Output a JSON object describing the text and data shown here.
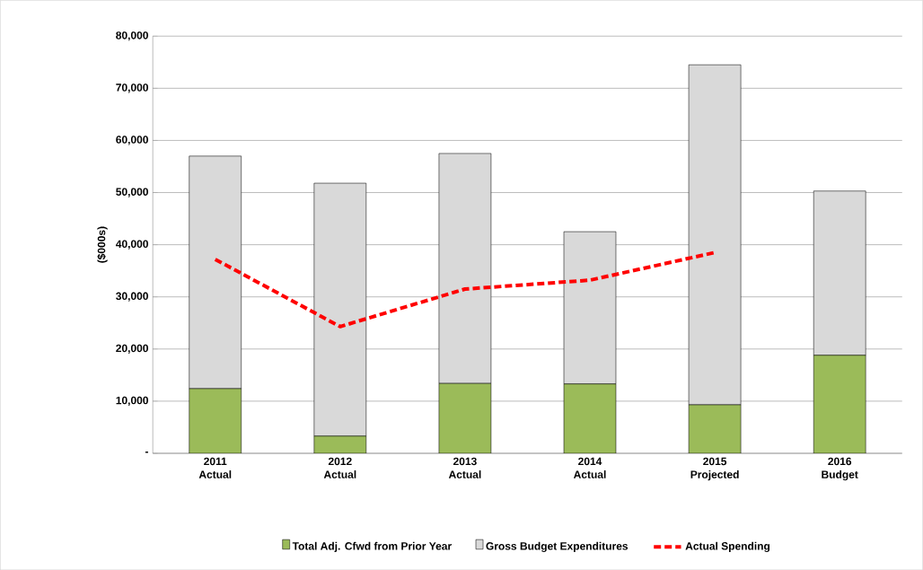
{
  "chart_data": {
    "type": "bar",
    "stacked": true,
    "ylabel": "($000s)",
    "categories": [
      "2011 Actual",
      "2012 Actual",
      "2013 Actual",
      "2014 Actual",
      "2015 Projected",
      "2016 Budget"
    ],
    "series": [
      {
        "name": "Total Adj. Cfwd from Prior Year",
        "color": "#9bbb59",
        "values": [
          12400,
          3300,
          13400,
          13300,
          9300,
          18800
        ]
      },
      {
        "name": "Gross Budget Expenditures",
        "color": "#d9d9d9",
        "values": [
          44600,
          48500,
          44100,
          29200,
          65200,
          31500
        ]
      },
      {
        "name": "Actual Spending",
        "type": "line",
        "line_style": "dashed",
        "color": "#ff0000",
        "values": [
          37200,
          24300,
          31500,
          33200,
          38500,
          null
        ]
      }
    ],
    "ylim": [
      0,
      80000
    ],
    "yticks": [
      {
        "value": 0,
        "label": "-"
      },
      {
        "value": 10000,
        "label": "10,000"
      },
      {
        "value": 20000,
        "label": "20,000"
      },
      {
        "value": 30000,
        "label": "30,000"
      },
      {
        "value": 40000,
        "label": "40,000"
      },
      {
        "value": 50000,
        "label": "50,000"
      },
      {
        "value": 60000,
        "label": "60,000"
      },
      {
        "value": 70000,
        "label": "70,000"
      },
      {
        "value": 80000,
        "label": "80,000"
      }
    ],
    "grid": "y",
    "legend": "bottom"
  }
}
